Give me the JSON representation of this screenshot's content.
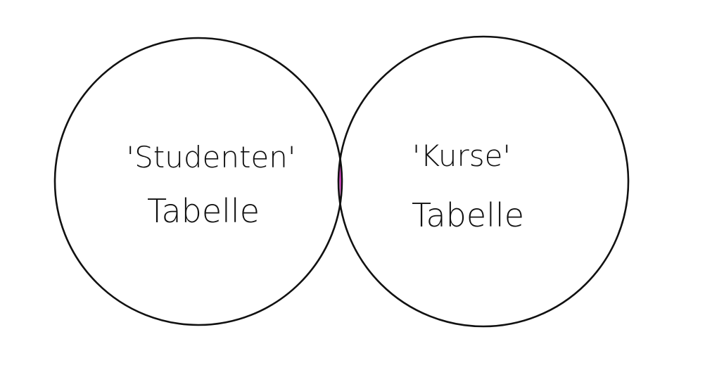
{
  "diagram": {
    "type": "venn",
    "left_set": {
      "line1": "'Studenten'",
      "line2": "Tabelle"
    },
    "right_set": {
      "line1": "'Kurse'",
      "line2": "Tabelle"
    },
    "intersection": {
      "highlighted": true,
      "color": "#e23fd0"
    },
    "outline_color": "#111111",
    "background_color": "#ffffff"
  }
}
